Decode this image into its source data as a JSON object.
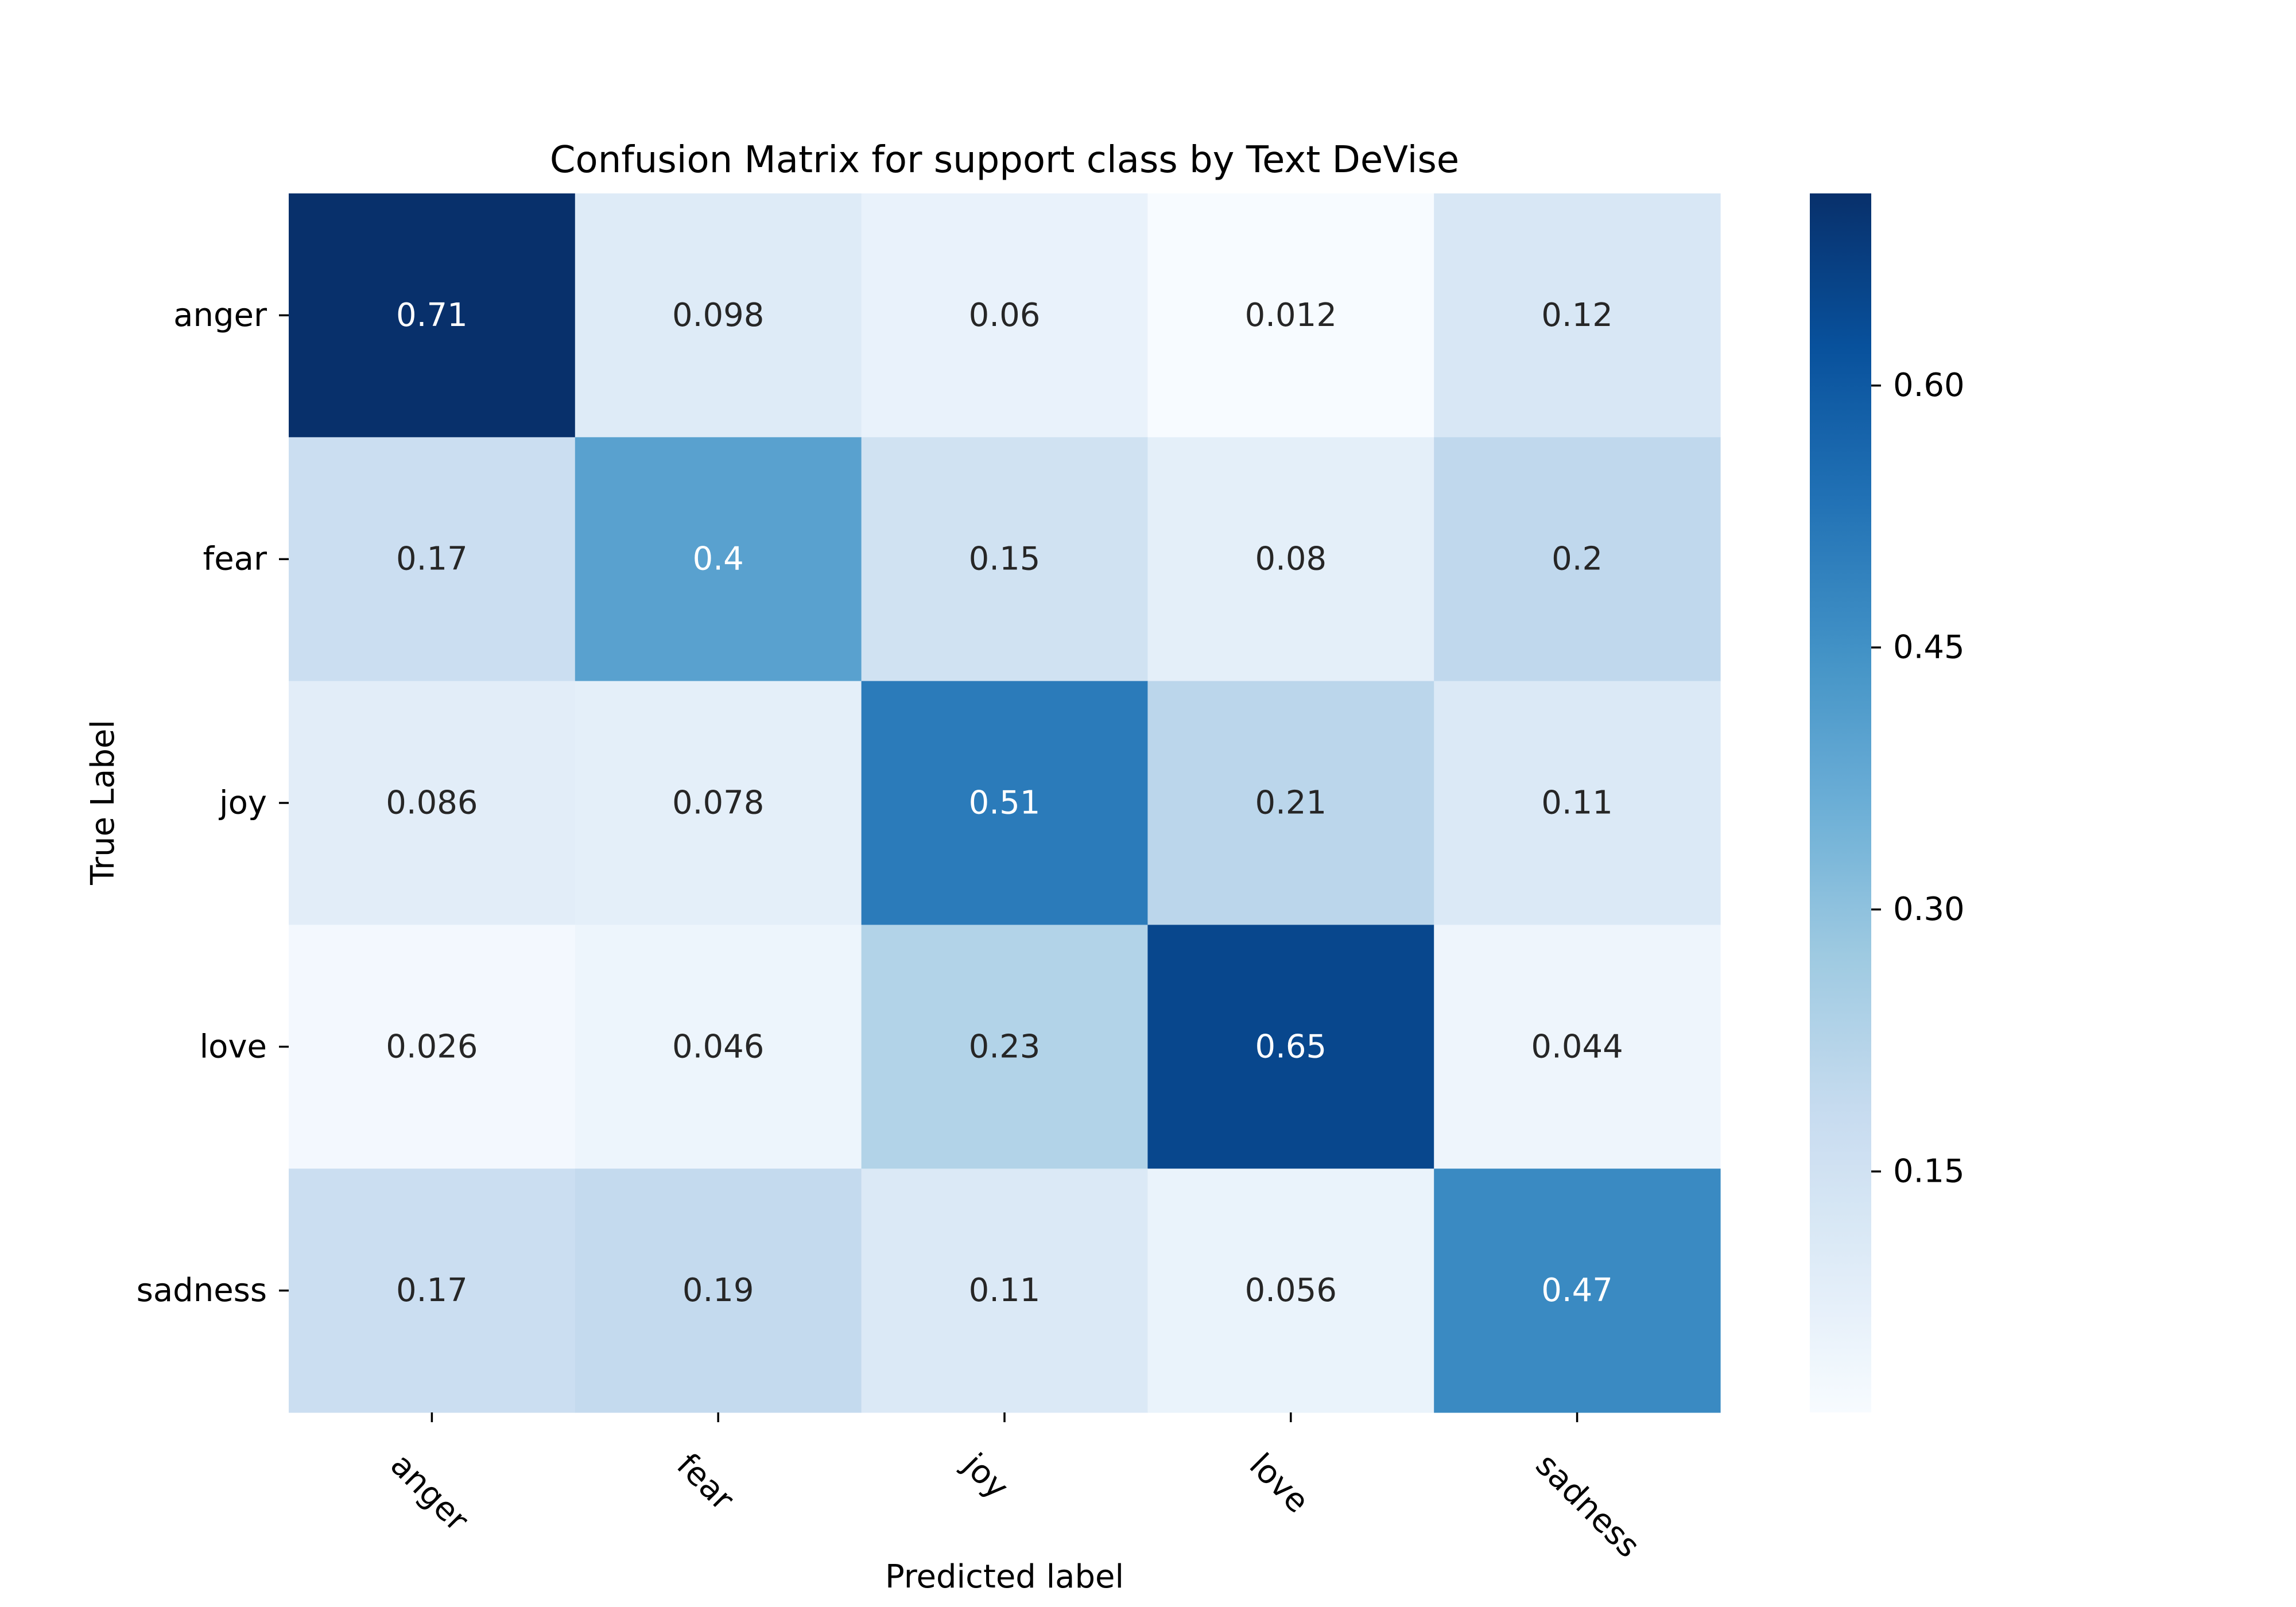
{
  "chart_data": {
    "type": "heatmap",
    "title": "Confusion Matrix for support class by Text DeVise",
    "xlabel": "Predicted label",
    "ylabel": "True Label",
    "x_categories": [
      "anger",
      "fear",
      "joy",
      "love",
      "sadness"
    ],
    "y_categories": [
      "anger",
      "fear",
      "joy",
      "love",
      "sadness"
    ],
    "values": [
      [
        0.71,
        0.098,
        0.06,
        0.012,
        0.12
      ],
      [
        0.17,
        0.4,
        0.15,
        0.08,
        0.2
      ],
      [
        0.086,
        0.078,
        0.51,
        0.21,
        0.11
      ],
      [
        0.026,
        0.046,
        0.23,
        0.65,
        0.044
      ],
      [
        0.17,
        0.19,
        0.11,
        0.056,
        0.47
      ]
    ],
    "cell_labels": [
      [
        "0.71",
        "0.098",
        "0.06",
        "0.012",
        "0.12"
      ],
      [
        "0.17",
        "0.4",
        "0.15",
        "0.08",
        "0.2"
      ],
      [
        "0.086",
        "0.078",
        "0.51",
        "0.21",
        "0.11"
      ],
      [
        "0.026",
        "0.046",
        "0.23",
        "0.65",
        "0.044"
      ],
      [
        "0.17",
        "0.19",
        "0.11",
        "0.056",
        "0.47"
      ]
    ],
    "colormap": "Blues",
    "color_range": [
      0.012,
      0.71
    ],
    "colorbar": {
      "ticks": [
        0.15,
        0.3,
        0.45,
        0.6
      ],
      "tick_labels": [
        "0.15",
        "0.30",
        "0.45",
        "0.60"
      ]
    },
    "colors": {
      "text_dark": "#262626",
      "text_light": "#ffffff"
    }
  }
}
